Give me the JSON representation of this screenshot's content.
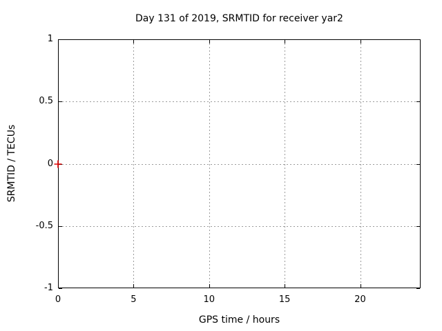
{
  "chart_data": {
    "type": "scatter",
    "title": "Day 131 of 2019, SRMTID for receiver yar2",
    "xlabel": "GPS time / hours",
    "ylabel": "SRMTID / TECUs",
    "xlim": [
      0,
      24
    ],
    "ylim": [
      -1,
      1
    ],
    "xticks": [
      0,
      5,
      10,
      15,
      20
    ],
    "yticks": [
      1,
      0.5,
      0,
      -0.5,
      -1
    ],
    "grid": true,
    "legend": "none",
    "series": [
      {
        "name": "SRMTID",
        "marker": "plus",
        "color": "#dd0000",
        "points": [
          {
            "x": 0,
            "y": 0
          }
        ]
      }
    ],
    "colors": {
      "background": "#ffffff",
      "border": "#000000",
      "grid": "#9a9a9a",
      "text": "#000000"
    }
  }
}
